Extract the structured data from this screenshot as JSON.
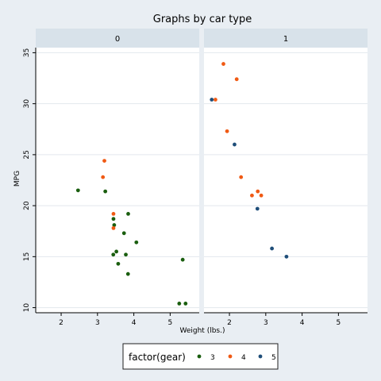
{
  "chart_data": {
    "type": "scatter",
    "title": "Graphs by car type",
    "xlabel": "Weight (lbs.)",
    "ylabel": "MPG",
    "xlim": [
      1.3,
      5.8
    ],
    "ylim": [
      9.5,
      35.5
    ],
    "xticks": [
      2,
      3,
      4,
      5
    ],
    "yticks": [
      10,
      15,
      20,
      25,
      30,
      35
    ],
    "grid": true,
    "legend_title": "factor(gear)",
    "legend_position": "bottom",
    "panels": [
      {
        "label": "0",
        "points": [
          {
            "x": 3.215,
            "y": 21.4,
            "gear": "3"
          },
          {
            "x": 3.44,
            "y": 18.7,
            "gear": "3"
          },
          {
            "x": 3.46,
            "y": 18.1,
            "gear": "3"
          },
          {
            "x": 3.57,
            "y": 14.3,
            "gear": "3"
          },
          {
            "x": 4.07,
            "y": 16.4,
            "gear": "3"
          },
          {
            "x": 3.73,
            "y": 17.3,
            "gear": "3"
          },
          {
            "x": 3.78,
            "y": 15.2,
            "gear": "3"
          },
          {
            "x": 5.25,
            "y": 10.4,
            "gear": "3"
          },
          {
            "x": 5.424,
            "y": 10.4,
            "gear": "3"
          },
          {
            "x": 5.345,
            "y": 14.7,
            "gear": "3"
          },
          {
            "x": 2.465,
            "y": 21.5,
            "gear": "3"
          },
          {
            "x": 3.52,
            "y": 15.5,
            "gear": "3"
          },
          {
            "x": 3.435,
            "y": 15.2,
            "gear": "3"
          },
          {
            "x": 3.84,
            "y": 13.3,
            "gear": "3"
          },
          {
            "x": 3.845,
            "y": 19.2,
            "gear": "3"
          },
          {
            "x": 3.19,
            "y": 24.4,
            "gear": "4"
          },
          {
            "x": 3.15,
            "y": 22.8,
            "gear": "4"
          },
          {
            "x": 3.44,
            "y": 19.2,
            "gear": "4"
          },
          {
            "x": 3.44,
            "y": 17.8,
            "gear": "4"
          }
        ]
      },
      {
        "label": "1",
        "points": [
          {
            "x": 2.62,
            "y": 21.0,
            "gear": "4"
          },
          {
            "x": 2.875,
            "y": 21.0,
            "gear": "4"
          },
          {
            "x": 2.32,
            "y": 22.8,
            "gear": "4"
          },
          {
            "x": 2.2,
            "y": 32.4,
            "gear": "4"
          },
          {
            "x": 1.615,
            "y": 30.4,
            "gear": "4"
          },
          {
            "x": 1.835,
            "y": 33.9,
            "gear": "4"
          },
          {
            "x": 1.935,
            "y": 27.3,
            "gear": "4"
          },
          {
            "x": 2.78,
            "y": 21.4,
            "gear": "4"
          },
          {
            "x": 2.14,
            "y": 26.0,
            "gear": "5"
          },
          {
            "x": 1.513,
            "y": 30.4,
            "gear": "5"
          },
          {
            "x": 3.17,
            "y": 15.8,
            "gear": "5"
          },
          {
            "x": 2.77,
            "y": 19.7,
            "gear": "5"
          },
          {
            "x": 3.57,
            "y": 15.0,
            "gear": "5"
          }
        ]
      }
    ],
    "series": [
      {
        "name": "3",
        "color": "#1a5e0f"
      },
      {
        "name": "4",
        "color": "#f05a14"
      },
      {
        "name": "5",
        "color": "#1f4e79"
      }
    ]
  }
}
